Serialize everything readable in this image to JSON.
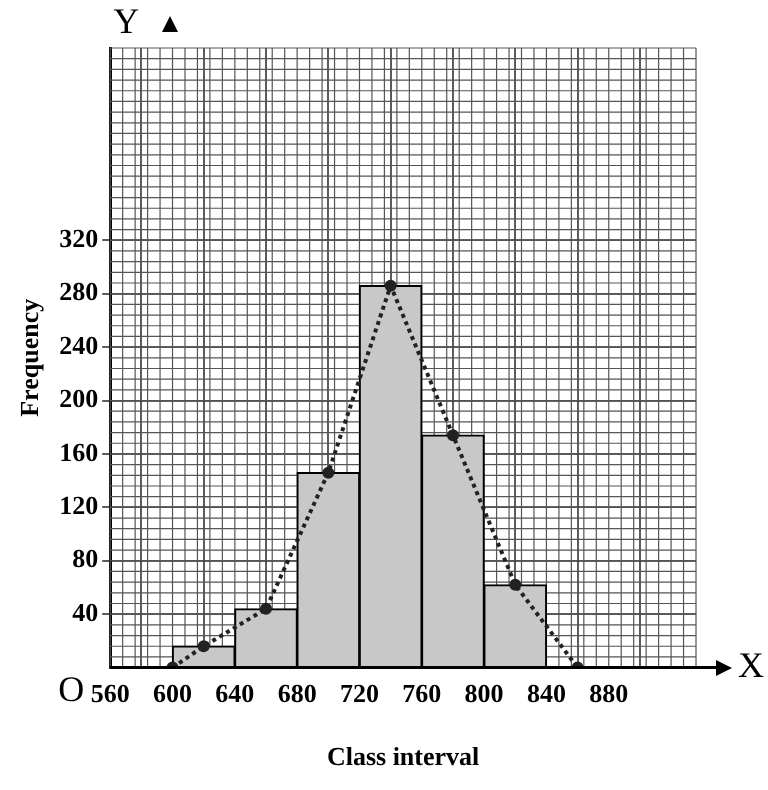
{
  "chart_data": {
    "type": "histogram",
    "xlabel": "Class interval",
    "ylabel": "Frequency",
    "bins": [
      600,
      640,
      680,
      720,
      760,
      800,
      840
    ],
    "values": [
      16,
      44,
      146,
      286,
      174,
      62
    ],
    "color": "#c8c8c8",
    "series": [
      {
        "type": "line",
        "x": [
          600,
          620,
          660,
          700,
          740,
          780,
          820,
          860
        ],
        "values": [
          0,
          16,
          44,
          146,
          286,
          174,
          62,
          0
        ],
        "color": "#222222",
        "line_style": "dotted",
        "marker": "circle"
      }
    ],
    "xlim": [
      560,
      936
    ],
    "ylim": [
      0,
      464
    ],
    "xticks": [
      560,
      600,
      640,
      680,
      720,
      760,
      800,
      840,
      880
    ],
    "yticks": [
      40,
      80,
      120,
      160,
      200,
      240,
      280,
      320
    ],
    "grid": true,
    "legend": false,
    "annotations": [
      "Y",
      "X",
      "O"
    ]
  }
}
